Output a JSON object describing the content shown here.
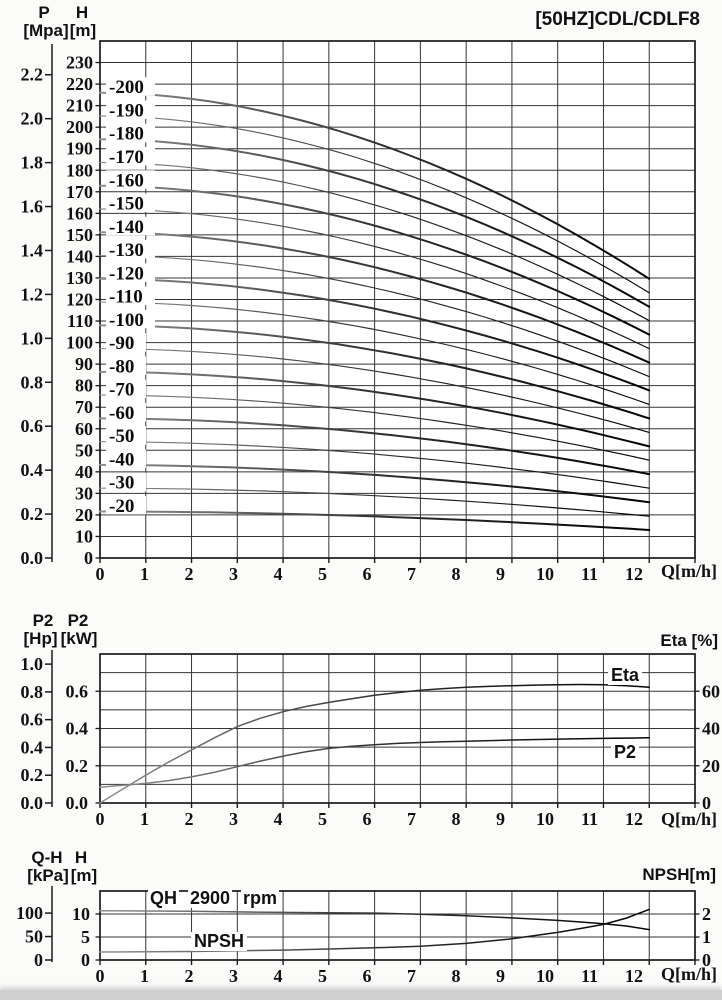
{
  "title": "[50HZ]CDL/CDLF8",
  "colors": {
    "grid": "#343434",
    "border": "#1a1a1a",
    "curve_dark": "#000000",
    "curve_light": "#8f8f8f",
    "plot_bg": "#ffffff"
  },
  "chart_data": [
    {
      "id": "hq-curves",
      "type": "line",
      "title": "[50HZ]CDL/CDLF8",
      "x": {
        "label": "Q[m/h]",
        "min": 0,
        "max": 13,
        "ticks": [
          0,
          1,
          2,
          3,
          4,
          5,
          6,
          7,
          8,
          9,
          10,
          11,
          12
        ],
        "grid_step": 1
      },
      "y": {
        "name": "H",
        "unit": "[m]",
        "min": 0,
        "max": 240,
        "grid_step": 10,
        "tick_step": 10
      },
      "y2": {
        "name": "P",
        "unit": "[Mpa]",
        "m_per_unit": 101.97,
        "tick_labels": [
          "2.2",
          "2.0",
          "1.8",
          "1.6",
          "1.4",
          "1.2",
          "1.0",
          "0.8",
          "0.6",
          "0.4",
          "0.2",
          "0.0"
        ],
        "tick_values": [
          2.2,
          2.0,
          1.8,
          1.6,
          1.4,
          1.2,
          1.0,
          0.8,
          0.6,
          0.4,
          0.2,
          0.0
        ]
      },
      "q_end": 12,
      "droop_exponent": 1.9,
      "series": [
        {
          "name": "-200",
          "h0": 216.0,
          "h_end": 129.6,
          "bold": true
        },
        {
          "name": "-190",
          "h0": 205.2,
          "h_end": 123.1,
          "bold": false
        },
        {
          "name": "-180",
          "h0": 194.4,
          "h_end": 116.6,
          "bold": true
        },
        {
          "name": "-170",
          "h0": 183.6,
          "h_end": 110.2,
          "bold": false
        },
        {
          "name": "-160",
          "h0": 172.8,
          "h_end": 103.7,
          "bold": true
        },
        {
          "name": "-150",
          "h0": 162.0,
          "h_end": 97.2,
          "bold": false
        },
        {
          "name": "-140",
          "h0": 151.2,
          "h_end": 90.7,
          "bold": true
        },
        {
          "name": "-130",
          "h0": 140.4,
          "h_end": 84.2,
          "bold": false
        },
        {
          "name": "-120",
          "h0": 129.6,
          "h_end": 77.8,
          "bold": true
        },
        {
          "name": "-110",
          "h0": 118.8,
          "h_end": 71.3,
          "bold": false
        },
        {
          "name": "-100",
          "h0": 108.0,
          "h_end": 64.8,
          "bold": true
        },
        {
          "name": "-90",
          "h0": 97.2,
          "h_end": 58.3,
          "bold": false
        },
        {
          "name": "-80",
          "h0": 86.4,
          "h_end": 51.8,
          "bold": true
        },
        {
          "name": "-70",
          "h0": 75.6,
          "h_end": 45.4,
          "bold": false
        },
        {
          "name": "-60",
          "h0": 64.8,
          "h_end": 38.9,
          "bold": true
        },
        {
          "name": "-50",
          "h0": 54.0,
          "h_end": 32.4,
          "bold": false
        },
        {
          "name": "-40",
          "h0": 43.2,
          "h_end": 25.9,
          "bold": true
        },
        {
          "name": "-30",
          "h0": 32.4,
          "h_end": 19.4,
          "bold": false
        },
        {
          "name": "-20",
          "h0": 21.6,
          "h_end": 13.0,
          "bold": true
        }
      ]
    },
    {
      "id": "power-efficiency",
      "type": "line",
      "x": {
        "label": "Q[m/h]",
        "min": 0,
        "max": 13,
        "ticks": [
          0,
          1,
          2,
          3,
          4,
          5,
          6,
          7,
          8,
          9,
          10,
          11,
          12
        ],
        "grid_step": 1
      },
      "y": {
        "name": "P2",
        "unit": "[kW]",
        "min": 0,
        "max": 0.8,
        "grid_step": 0.1,
        "tick_labels": [
          "0.6",
          "0.4",
          "0.2",
          "0.0"
        ],
        "tick_values": [
          0.6,
          0.4,
          0.2,
          0.0
        ]
      },
      "y_hp": {
        "name": "P2",
        "unit": "[Hp]",
        "kw_per_hp": 0.7457,
        "tick_labels": [
          "1.0",
          "0.8",
          "0.6",
          "0.4",
          "0.2",
          "0.0"
        ],
        "tick_values": [
          1.0,
          0.8,
          0.6,
          0.4,
          0.2,
          0.0
        ]
      },
      "y_right": {
        "label": "Eta [%]",
        "min": 0,
        "max": 80,
        "tick_values": [
          60,
          40,
          20,
          0
        ]
      },
      "series": [
        {
          "name": "Eta",
          "axis": "right",
          "points": [
            [
              0,
              0
            ],
            [
              0.5,
              7.5
            ],
            [
              1,
              15
            ],
            [
              1.5,
              22
            ],
            [
              2,
              28.5
            ],
            [
              2.5,
              35
            ],
            [
              3,
              41
            ],
            [
              3.5,
              45.5
            ],
            [
              4,
              49
            ],
            [
              4.5,
              51.8
            ],
            [
              5,
              54
            ],
            [
              5.5,
              56
            ],
            [
              6,
              57.8
            ],
            [
              6.5,
              59.3
            ],
            [
              7,
              60.5
            ],
            [
              7.5,
              61.4
            ],
            [
              8,
              62.1
            ],
            [
              8.5,
              62.6
            ],
            [
              9,
              63
            ],
            [
              9.5,
              63.3
            ],
            [
              10,
              63.5
            ],
            [
              10.5,
              63.6
            ],
            [
              11,
              63.5
            ],
            [
              11.5,
              63
            ],
            [
              12,
              62.2
            ]
          ]
        },
        {
          "name": "P2",
          "axis": "left",
          "points": [
            [
              0,
              0.085
            ],
            [
              0.5,
              0.095
            ],
            [
              1,
              0.105
            ],
            [
              1.5,
              0.12
            ],
            [
              2,
              0.14
            ],
            [
              2.5,
              0.165
            ],
            [
              3,
              0.195
            ],
            [
              3.5,
              0.225
            ],
            [
              4,
              0.252
            ],
            [
              4.5,
              0.275
            ],
            [
              5,
              0.293
            ],
            [
              5.5,
              0.305
            ],
            [
              6,
              0.313
            ],
            [
              6.5,
              0.32
            ],
            [
              7,
              0.325
            ],
            [
              7.5,
              0.329
            ],
            [
              8,
              0.332
            ],
            [
              9,
              0.338
            ],
            [
              10,
              0.343
            ],
            [
              11,
              0.347
            ],
            [
              12,
              0.35
            ]
          ]
        }
      ]
    },
    {
      "id": "qh-npsh",
      "type": "line",
      "rpm": "2900",
      "x": {
        "label": "Q[m/h]",
        "min": 0,
        "max": 13,
        "ticks": [
          0,
          1,
          2,
          3,
          4,
          5,
          6,
          7,
          8,
          9,
          10,
          11,
          12
        ],
        "grid_step": 1
      },
      "y": {
        "name": "H",
        "unit": "[m]",
        "min": 0,
        "max": 15,
        "grid_step": 5,
        "tick_values": [
          10,
          5,
          0
        ]
      },
      "y_kpa": {
        "name": "Q-H",
        "unit": "[kPa]",
        "m_per_unit": 0.10197,
        "tick_values": [
          100,
          50,
          0
        ]
      },
      "y_right": {
        "label": "NPSH[m]",
        "min": 0,
        "max": 3,
        "tick_values": [
          2,
          1,
          0
        ]
      },
      "series": [
        {
          "name": "QH 2900 rpm",
          "short": "QH",
          "rpm_value": "2900",
          "rpm_unit": "rpm",
          "axis": "left",
          "points": [
            [
              0,
              10.7
            ],
            [
              1,
              10.65
            ],
            [
              2,
              10.6
            ],
            [
              3,
              10.45
            ],
            [
              4,
              10.35
            ],
            [
              5,
              10.28
            ],
            [
              6,
              10.2
            ],
            [
              7,
              9.95
            ],
            [
              8,
              9.6
            ],
            [
              9,
              9.15
            ],
            [
              10,
              8.6
            ],
            [
              10.5,
              8.25
            ],
            [
              11,
              7.9
            ],
            [
              11.5,
              7.4
            ],
            [
              12,
              6.6
            ]
          ]
        },
        {
          "name": "NPSH",
          "axis": "right",
          "points": [
            [
              0,
              0.35
            ],
            [
              1,
              0.36
            ],
            [
              2,
              0.37
            ],
            [
              3,
              0.4
            ],
            [
              4,
              0.43
            ],
            [
              5,
              0.48
            ],
            [
              6,
              0.53
            ],
            [
              7,
              0.6
            ],
            [
              8,
              0.72
            ],
            [
              9,
              0.92
            ],
            [
              10,
              1.2
            ],
            [
              10.5,
              1.37
            ],
            [
              11,
              1.55
            ],
            [
              11.5,
              1.82
            ],
            [
              12,
              2.2
            ]
          ]
        }
      ]
    }
  ]
}
